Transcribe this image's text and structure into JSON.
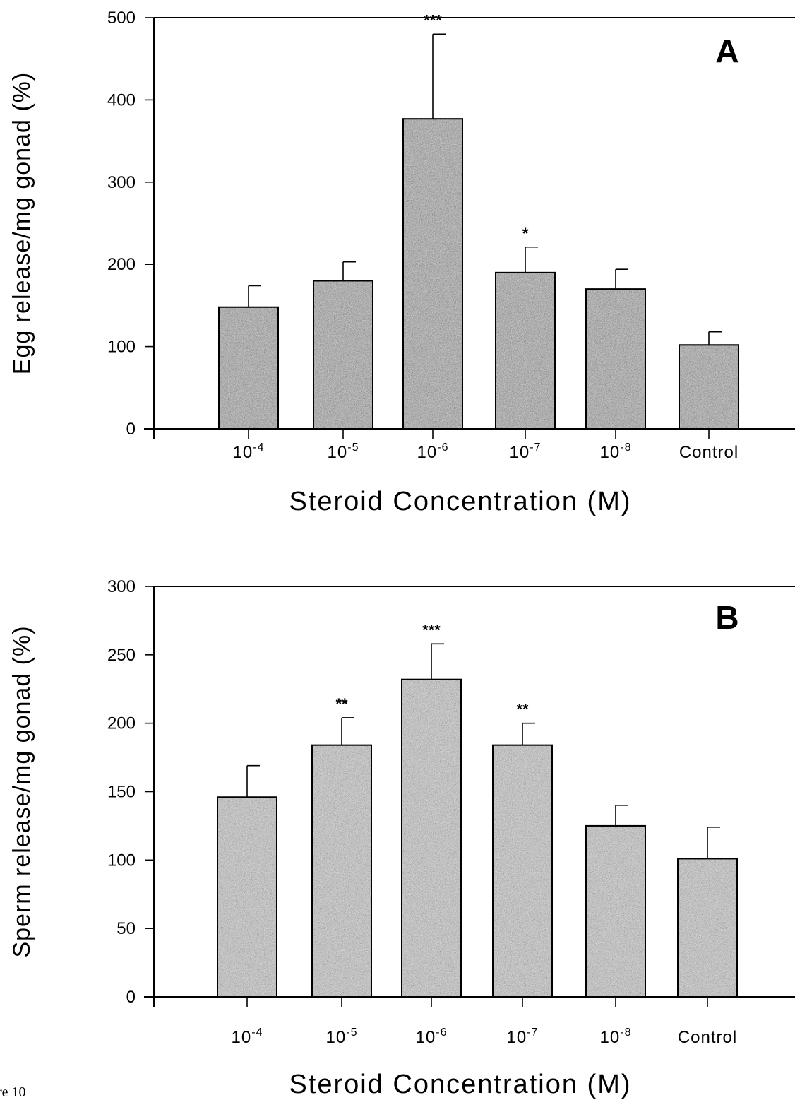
{
  "figure_caption": "re 10",
  "chart_data": [
    {
      "type": "bar",
      "panel_label": "A",
      "ylabel": "Egg release/mg gonad (%)",
      "xlabel": "Steroid Concentration (M)",
      "ylim": [
        0,
        500
      ],
      "yticks": [
        0,
        100,
        200,
        300,
        400,
        500
      ],
      "categories": [
        {
          "base": "10",
          "exp": "-4"
        },
        {
          "base": "10",
          "exp": "-5"
        },
        {
          "base": "10",
          "exp": "-6"
        },
        {
          "base": "10",
          "exp": "-7"
        },
        {
          "base": "10",
          "exp": "-8"
        },
        {
          "base": "Control",
          "exp": ""
        }
      ],
      "values": [
        148,
        180,
        377,
        190,
        170,
        102
      ],
      "errors": [
        26,
        23,
        103,
        31,
        24,
        16
      ],
      "significance": [
        "",
        "",
        "***",
        "*",
        "",
        ""
      ],
      "grid": false,
      "bar_fill": "#8a8a8a"
    },
    {
      "type": "bar",
      "panel_label": "B",
      "ylabel": "Sperm release/mg gonad (%)",
      "xlabel": "Steroid Concentration (M)",
      "ylim": [
        0,
        300
      ],
      "yticks": [
        0,
        50,
        100,
        150,
        200,
        250,
        300
      ],
      "categories": [
        {
          "base": "10",
          "exp": "-4"
        },
        {
          "base": "10",
          "exp": "-5"
        },
        {
          "base": "10",
          "exp": "-6"
        },
        {
          "base": "10",
          "exp": "-7"
        },
        {
          "base": "10",
          "exp": "-8"
        },
        {
          "base": "Control",
          "exp": ""
        }
      ],
      "values": [
        146,
        184,
        232,
        184,
        125,
        101
      ],
      "errors": [
        23,
        20,
        26,
        16,
        15,
        23
      ],
      "significance": [
        "",
        "**",
        "***",
        "**",
        "",
        ""
      ],
      "grid": false,
      "bar_fill": "#a8a8a8"
    }
  ]
}
